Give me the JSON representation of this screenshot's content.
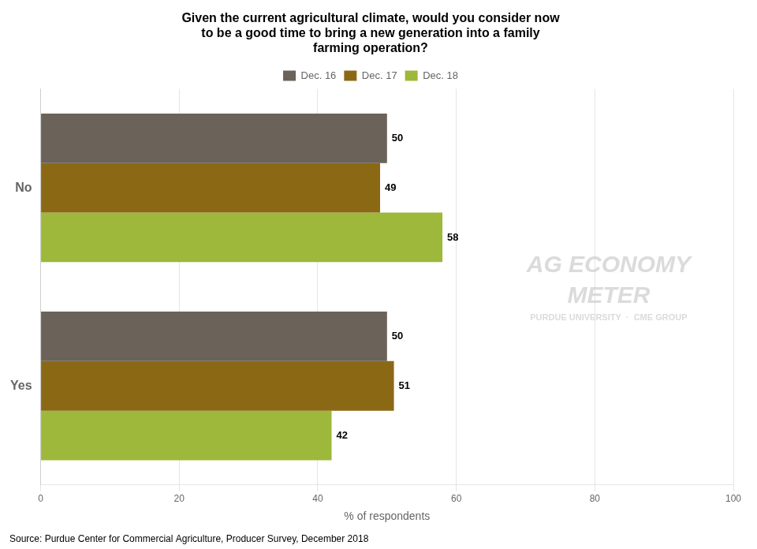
{
  "chart_data": {
    "type": "bar",
    "orientation": "horizontal",
    "title": "Given the current agricultural climate, would you consider now\nto be a good time to bring a new generation into a family\nfarming operation?",
    "categories": [
      "No",
      "Yes"
    ],
    "series": [
      {
        "name": "Dec. 16",
        "color": "#6b6259",
        "values": [
          50,
          50
        ]
      },
      {
        "name": "Dec. 17",
        "color": "#8b6914",
        "values": [
          49,
          51
        ]
      },
      {
        "name": "Dec. 18",
        "color": "#9db83a",
        "values": [
          58,
          42
        ]
      }
    ],
    "xlabel": "% of respondents",
    "xlim": [
      0,
      100
    ],
    "xticks": [
      0,
      20,
      40,
      60,
      80,
      100
    ],
    "grid": true,
    "legend": "top",
    "data_labels": true,
    "annotations": [
      "AG ECONOMY",
      "METER",
      "PURDUE UNIVERSITY  ·  CME GROUP",
      "Source: Purdue Center for Commercial Agriculture, Producer Survey, December 2018"
    ]
  }
}
